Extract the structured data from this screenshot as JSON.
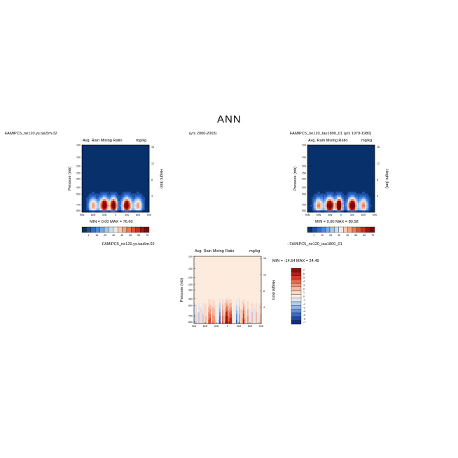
{
  "title": "ANN",
  "top_left": {
    "case": "FAMIPC5_ne120.ys.tau5m.02",
    "years": "(yrs 2000-2003)",
    "variable": "Avg. Rain Mixing Ratio",
    "units": "mg/kg",
    "stats": "MIN =   0.00   MAX =  76.60"
  },
  "top_right": {
    "case": "FAMIPC5_ne120_tau1800_01 (yrs 1979-1980)",
    "variable": "Avg. Rain Mixing Ratio",
    "units": "mg/kg",
    "stats": "MIN =   0.00   MAX =  80.58"
  },
  "diff": {
    "case_a": "FAMIPC5_ne120.ys.tau5m.02",
    "case_b": "- FAMIPC5_ne120_tau1800_01",
    "variable": "Avg. Rain Mixing Ratio",
    "units": "mg/kg",
    "stats": "MIN = -14.54   MAX =  24.49"
  },
  "chart_data": [
    {
      "type": "heatmap",
      "title": "Avg. Rain Mixing Ratio",
      "subtitle": "FAMIPC5_ne120.ys.tau5m.02 (yrs 2000-2003)",
      "ylabel": "Pressure (mb)",
      "ylabel_right": "Height (km)",
      "x_ticks": [
        "90N",
        "60N",
        "30N",
        "0",
        "30S",
        "60S",
        "90S"
      ],
      "y_ticks": [
        "100",
        "150",
        "200",
        "250",
        "300",
        "400",
        "500",
        "700",
        "850"
      ],
      "y_right_ticks": [
        "16",
        "12",
        "8",
        "4"
      ],
      "colorbar_ticks": [
        "1",
        "10",
        "20",
        "30",
        "40",
        "50",
        "60",
        "70"
      ],
      "min": 0.0,
      "max": 76.6
    },
    {
      "type": "heatmap",
      "title": "Avg. Rain Mixing Ratio",
      "subtitle": "FAMIPC5_ne120_tau1800_01 (yrs 1979-1980)",
      "ylabel": "Pressure (mb)",
      "ylabel_right": "Height (km)",
      "x_ticks": [
        "90N",
        "60N",
        "30N",
        "0",
        "30S",
        "60S",
        "90S"
      ],
      "y_ticks": [
        "100",
        "150",
        "200",
        "250",
        "300",
        "400",
        "500",
        "700",
        "850"
      ],
      "y_right_ticks": [
        "16",
        "12",
        "8",
        "4"
      ],
      "colorbar_ticks": [
        "1",
        "10",
        "20",
        "30",
        "40",
        "50",
        "60",
        "70"
      ],
      "min": 0.0,
      "max": 80.58
    },
    {
      "type": "heatmap",
      "title": "Avg. Rain Mixing Ratio",
      "subtitle": "FAMIPC5_ne120.ys.tau5m.02 - FAMIPC5_ne120_tau1800_01",
      "ylabel": "Pressure (mb)",
      "ylabel_right": "Height (km)",
      "x_ticks": [
        "90N",
        "60N",
        "30N",
        "0",
        "30S",
        "60S",
        "90S"
      ],
      "y_ticks": [
        "100",
        "150",
        "200",
        "250",
        "300",
        "400",
        "500",
        "700",
        "850"
      ],
      "y_right_ticks": [
        "16",
        "12",
        "8",
        "4"
      ],
      "colorbar_ticks": [
        "7",
        "6",
        "5",
        "4",
        "3",
        "2",
        "1",
        "0",
        "-1",
        "-2",
        "-3",
        "-4",
        "-5",
        "-6",
        "-7"
      ],
      "min": -14.54,
      "max": 24.49
    }
  ],
  "colors": {
    "seq": [
      "#08306b",
      "#1f4fa0",
      "#2e6ad1",
      "#4a87e3",
      "#73a8ee",
      "#a0c6f3",
      "#c8def6",
      "#f3e6dc",
      "#f7c9ac",
      "#f5a47f",
      "#ee7a52",
      "#e0512f",
      "#c6301d",
      "#a0150f",
      "#7a0a0a"
    ],
    "div": [
      "#8b0f0a",
      "#b0211a",
      "#d0402b",
      "#e4694c",
      "#ef9477",
      "#f6b8a0",
      "#fad8c8",
      "#fdebdd",
      "#dce8f6",
      "#b7d0ef",
      "#8fb3e6",
      "#6390d8",
      "#3d6cc4",
      "#2348a5",
      "#112e7e"
    ]
  }
}
